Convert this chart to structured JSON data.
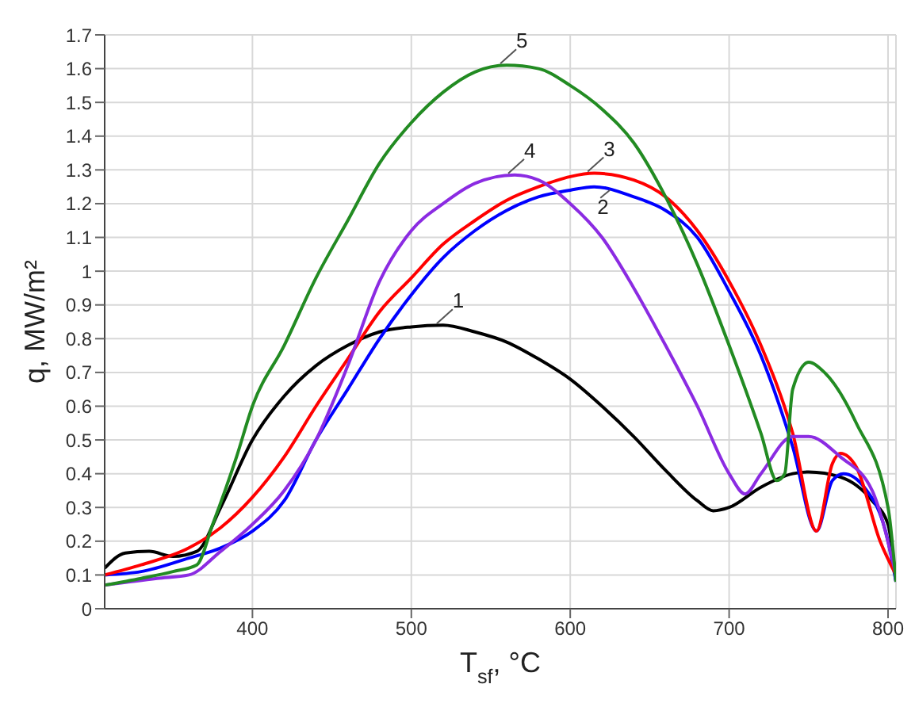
{
  "chart_data": {
    "type": "line",
    "xlabel": "T$_{sf}$, °C",
    "ylabel": "q, MW/m²",
    "xlim": [
      307,
      805
    ],
    "xticks": [
      400,
      500,
      600,
      700,
      800
    ],
    "ylim": [
      0,
      1.7
    ],
    "yticks": [
      0,
      0.1,
      0.2,
      0.3,
      0.4,
      0.5,
      0.6,
      0.7,
      0.8,
      0.9,
      1,
      1.1,
      1.2,
      1.3,
      1.4,
      1.5,
      1.6,
      1.7
    ],
    "grid": true,
    "marker": "none",
    "line_style": "solid",
    "x": [
      307,
      330,
      360,
      380,
      400,
      420,
      440,
      460,
      480,
      500,
      520,
      540,
      560,
      580,
      600,
      615,
      640,
      660,
      680,
      700,
      720,
      740,
      755,
      765,
      772,
      785,
      800,
      805
    ],
    "series": [
      {
        "name": "1",
        "color": "#000000",
        "x": [
          307,
          320,
          335,
          350,
          365,
          380,
          400,
          420,
          440,
          460,
          480,
          500,
          520,
          540,
          560,
          580,
          600,
          620,
          640,
          660,
          680,
          690,
          700,
          720,
          740,
          750,
          770,
          790,
          800,
          805
        ],
        "values": [
          0.12,
          0.165,
          0.17,
          0.155,
          0.17,
          0.3,
          0.5,
          0.63,
          0.72,
          0.78,
          0.82,
          0.835,
          0.84,
          0.82,
          0.79,
          0.74,
          0.68,
          0.6,
          0.51,
          0.41,
          0.32,
          0.29,
          0.3,
          0.36,
          0.4,
          0.405,
          0.39,
          0.32,
          0.25,
          0.08
        ]
      },
      {
        "name": "2",
        "color": "#0000ff",
        "values": [
          0.1,
          0.11,
          0.15,
          0.18,
          0.23,
          0.32,
          0.5,
          0.65,
          0.8,
          0.93,
          1.04,
          1.12,
          1.18,
          1.22,
          1.24,
          1.25,
          1.22,
          1.18,
          1.1,
          0.94,
          0.75,
          0.48,
          0.23,
          0.38,
          0.4,
          0.36,
          0.2,
          0.08
        ]
      },
      {
        "name": "3",
        "color": "#ff0000",
        "x": [
          307,
          330,
          360,
          380,
          400,
          420,
          440,
          460,
          480,
          500,
          520,
          540,
          560,
          580,
          600,
          615,
          640,
          660,
          680,
          700,
          720,
          740,
          755,
          765,
          770,
          780,
          795,
          805
        ],
        "values": [
          0.1,
          0.13,
          0.18,
          0.24,
          0.33,
          0.45,
          0.6,
          0.74,
          0.88,
          0.98,
          1.08,
          1.15,
          1.21,
          1.25,
          1.28,
          1.29,
          1.27,
          1.22,
          1.12,
          0.97,
          0.78,
          0.52,
          0.23,
          0.43,
          0.46,
          0.42,
          0.2,
          0.1
        ]
      },
      {
        "name": "4",
        "color": "#8b2be2",
        "x": [
          307,
          340,
          360,
          380,
          400,
          420,
          440,
          460,
          480,
          500,
          520,
          540,
          565,
          580,
          600,
          620,
          640,
          660,
          680,
          700,
          710,
          720,
          740,
          750,
          770,
          790,
          805
        ],
        "values": [
          0.07,
          0.09,
          0.1,
          0.17,
          0.25,
          0.35,
          0.5,
          0.72,
          0.97,
          1.12,
          1.2,
          1.26,
          1.285,
          1.27,
          1.2,
          1.1,
          0.95,
          0.78,
          0.6,
          0.4,
          0.34,
          0.4,
          0.51,
          0.51,
          0.45,
          0.35,
          0.1
        ]
      },
      {
        "name": "5",
        "color": "#228b22",
        "x": [
          307,
          330,
          350,
          365,
          375,
          390,
          400,
          420,
          440,
          460,
          480,
          500,
          520,
          540,
          560,
          580,
          600,
          620,
          640,
          660,
          680,
          700,
          720,
          730,
          735,
          740,
          750,
          760,
          780,
          800,
          805
        ],
        "values": [
          0.07,
          0.09,
          0.11,
          0.13,
          0.25,
          0.45,
          0.6,
          0.78,
          0.98,
          1.15,
          1.32,
          1.44,
          1.53,
          1.59,
          1.61,
          1.6,
          1.55,
          1.48,
          1.38,
          1.22,
          1.02,
          0.78,
          0.52,
          0.38,
          0.4,
          0.65,
          0.73,
          0.7,
          0.55,
          0.3,
          0.08
        ]
      }
    ]
  }
}
